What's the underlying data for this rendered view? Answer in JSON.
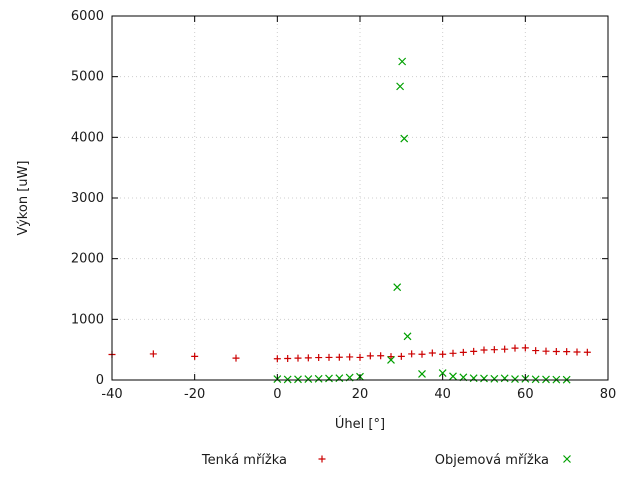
{
  "chart_data": {
    "type": "scatter",
    "title": "",
    "xlabel": "Úhel [°]",
    "ylabel": "Výkon [uW]",
    "xlim": [
      -40,
      80
    ],
    "ylim": [
      0,
      6000
    ],
    "xticks": [
      -40,
      -20,
      0,
      20,
      40,
      60,
      80
    ],
    "yticks": [
      0,
      1000,
      2000,
      3000,
      4000,
      5000,
      6000
    ],
    "grid": true,
    "legend_position": "bottom",
    "series": [
      {
        "name": "Tenká mřížka",
        "marker": "plus",
        "color": "#cc0000",
        "points": [
          [
            -40,
            420
          ],
          [
            -30,
            430
          ],
          [
            -20,
            390
          ],
          [
            -10,
            360
          ],
          [
            0,
            350
          ],
          [
            2.5,
            355
          ],
          [
            5,
            360
          ],
          [
            7.5,
            365
          ],
          [
            10,
            370
          ],
          [
            12.5,
            372
          ],
          [
            15,
            375
          ],
          [
            17.5,
            380
          ],
          [
            20,
            372
          ],
          [
            22.5,
            398
          ],
          [
            25,
            400
          ],
          [
            27.5,
            385
          ],
          [
            30,
            390
          ],
          [
            32.5,
            430
          ],
          [
            35,
            425
          ],
          [
            37.5,
            445
          ],
          [
            40,
            425
          ],
          [
            42.5,
            440
          ],
          [
            45,
            455
          ],
          [
            47.5,
            472
          ],
          [
            50,
            495
          ],
          [
            52.5,
            500
          ],
          [
            55,
            508
          ],
          [
            57.5,
            525
          ],
          [
            60,
            530
          ],
          [
            62.5,
            485
          ],
          [
            65,
            475
          ],
          [
            67.5,
            470
          ],
          [
            70,
            468
          ],
          [
            72.5,
            462
          ],
          [
            75,
            458
          ]
        ]
      },
      {
        "name": "Objemová mřížka",
        "marker": "cross",
        "color": "#00a000",
        "points": [
          [
            0,
            15
          ],
          [
            2.5,
            10
          ],
          [
            5,
            12
          ],
          [
            7.5,
            15
          ],
          [
            10,
            20
          ],
          [
            12.5,
            25
          ],
          [
            15,
            30
          ],
          [
            17.5,
            40
          ],
          [
            20,
            55
          ],
          [
            27.5,
            330
          ],
          [
            29,
            1530
          ],
          [
            29.7,
            4840
          ],
          [
            30.2,
            5250
          ],
          [
            30.7,
            3980
          ],
          [
            31.5,
            720
          ],
          [
            35,
            100
          ],
          [
            40,
            115
          ],
          [
            42.5,
            60
          ],
          [
            45,
            45
          ],
          [
            47.5,
            30
          ],
          [
            50,
            25
          ],
          [
            52.5,
            20
          ],
          [
            55,
            28
          ],
          [
            57.5,
            15
          ],
          [
            60,
            20
          ],
          [
            62.5,
            12
          ],
          [
            65,
            10
          ],
          [
            67.5,
            6
          ],
          [
            70,
            5
          ]
        ]
      }
    ]
  }
}
